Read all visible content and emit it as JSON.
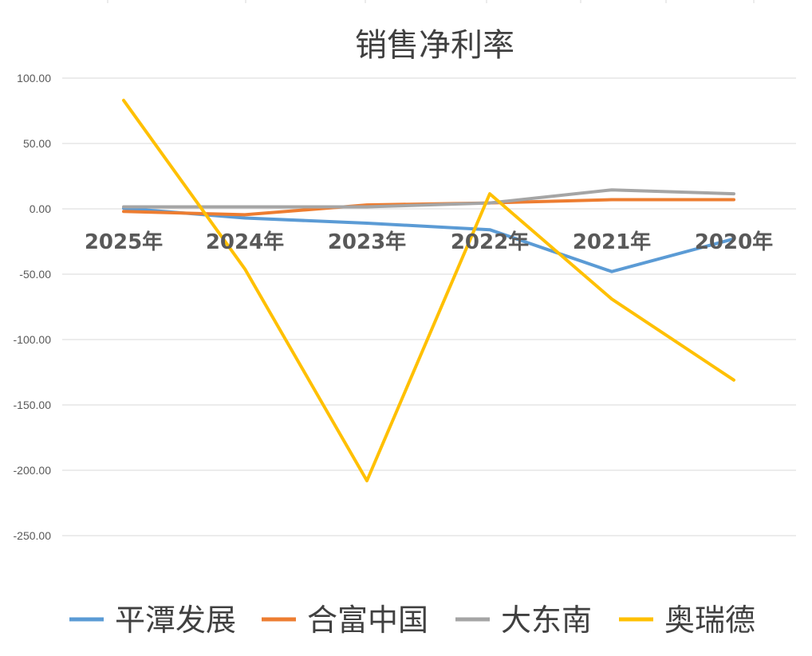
{
  "chart_data": {
    "type": "line",
    "title": "销售净利率",
    "xlabel": "",
    "ylabel": "",
    "categories": [
      "2025年",
      "2024年",
      "2023年",
      "2022年",
      "2021年",
      "2020年"
    ],
    "ylim": [
      -300,
      100
    ],
    "yticks": [
      100,
      50,
      0,
      -50,
      -100,
      -150,
      -200,
      -250
    ],
    "ytick_labels": [
      "100.00",
      "50.00",
      "0.00",
      "-50.00",
      "-100.00",
      "-150.00",
      "-200.00",
      "-250.00"
    ],
    "grid": true,
    "legend": "bottom",
    "series": [
      {
        "name": "平潭发展",
        "color": "#5B9BD5",
        "values": [
          0.5,
          -7,
          -11,
          -16,
          -48,
          -23
        ]
      },
      {
        "name": "合富中国",
        "color": "#ED7D31",
        "values": [
          -2,
          -4.5,
          3,
          4.5,
          7,
          7
        ]
      },
      {
        "name": "大东南",
        "color": "#A5A5A5",
        "values": [
          1.5,
          1.5,
          1.5,
          4.5,
          14.5,
          11.5
        ]
      },
      {
        "name": "奥瑞德",
        "color": "#FFC000",
        "values": [
          83,
          -46,
          -208,
          11.5,
          -69,
          -131
        ]
      }
    ]
  }
}
